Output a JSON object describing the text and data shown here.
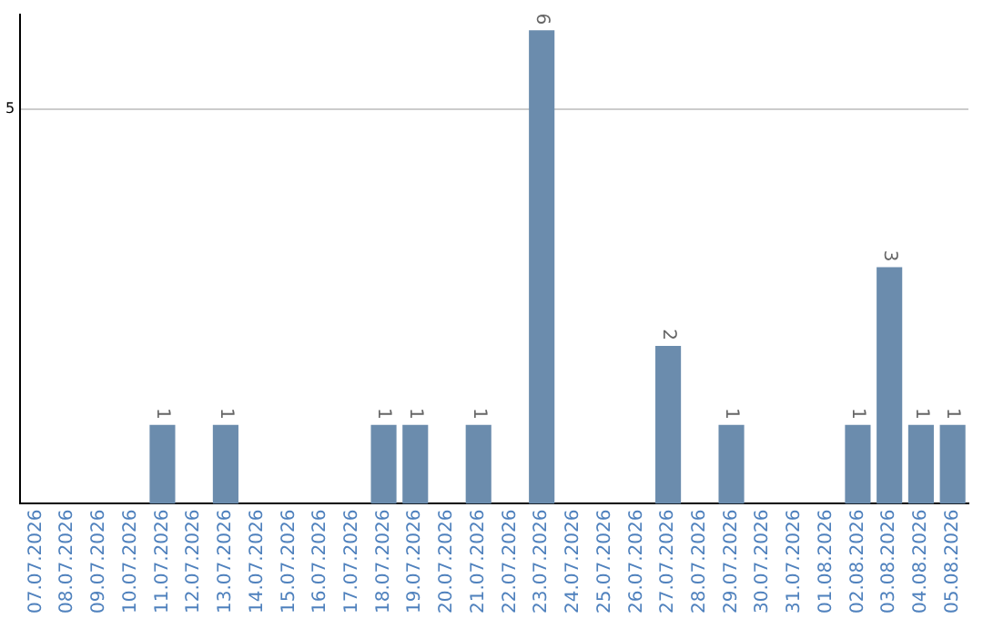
{
  "chart_data": {
    "type": "bar",
    "categories": [
      "07.07.2026",
      "08.07.2026",
      "09.07.2026",
      "10.07.2026",
      "11.07.2026",
      "12.07.2026",
      "13.07.2026",
      "14.07.2026",
      "15.07.2026",
      "16.07.2026",
      "17.07.2026",
      "18.07.2026",
      "19.07.2026",
      "20.07.2026",
      "21.07.2026",
      "22.07.2026",
      "23.07.2026",
      "24.07.2026",
      "25.07.2026",
      "26.07.2026",
      "27.07.2026",
      "28.07.2026",
      "29.07.2026",
      "30.07.2026",
      "31.07.2026",
      "01.08.2026",
      "02.08.2026",
      "03.08.2026",
      "04.08.2026",
      "05.08.2026"
    ],
    "values": [
      0,
      0,
      0,
      0,
      1,
      0,
      1,
      0,
      0,
      0,
      0,
      1,
      1,
      0,
      1,
      0,
      6,
      0,
      0,
      0,
      2,
      0,
      1,
      0,
      0,
      0,
      1,
      3,
      1,
      1
    ],
    "value_labels": [
      null,
      null,
      null,
      null,
      "1",
      null,
      "1",
      null,
      null,
      null,
      null,
      "1",
      "1",
      null,
      "1",
      null,
      "6",
      null,
      null,
      null,
      "2",
      null,
      "1",
      null,
      null,
      null,
      "1",
      "3",
      "1",
      "1"
    ],
    "color": "#6b8cad",
    "ylim": [
      0,
      6.2
    ],
    "yticks": [
      5
    ],
    "grid": "y"
  }
}
